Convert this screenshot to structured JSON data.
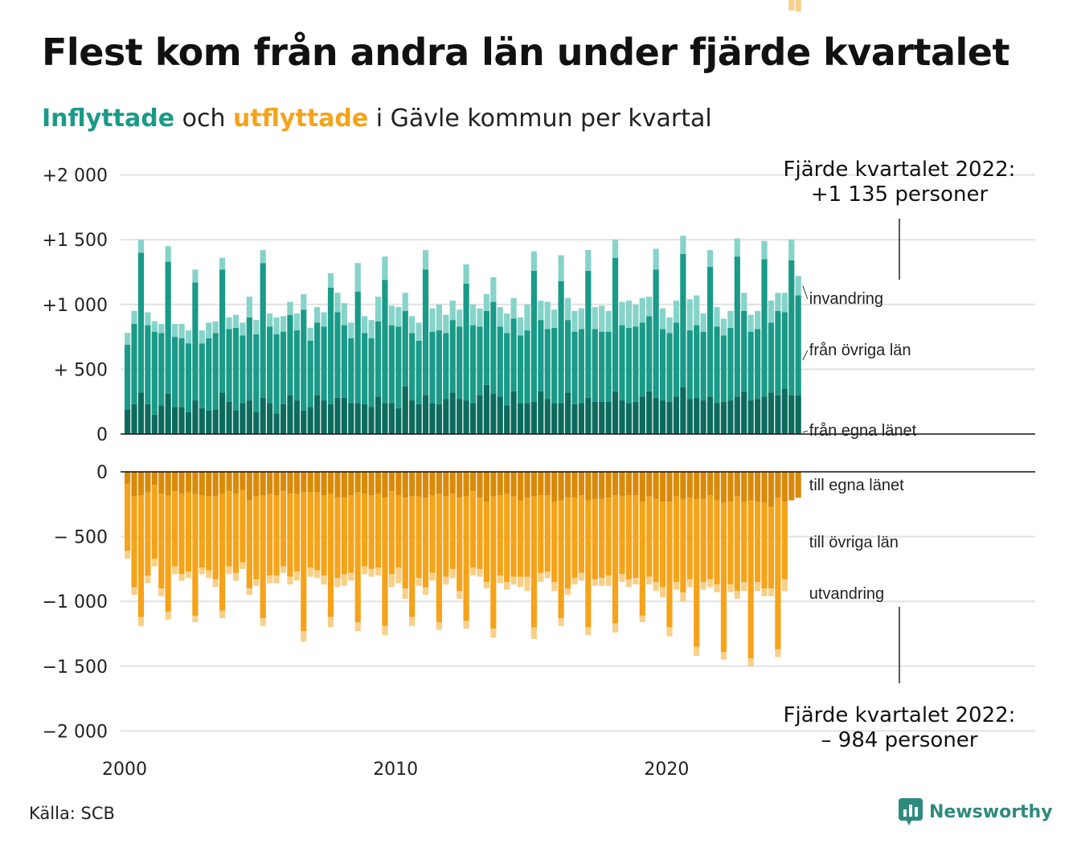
{
  "title": "Flest kom från andra län under fjärde kvartalet",
  "subtitle": {
    "part1": "Inflyttade",
    "part2": " och ",
    "part3": "utflyttade",
    "part4": " i Gävle kommun per kvartal"
  },
  "source": "Källa: SCB",
  "brand": "Newsworthy",
  "colors": {
    "in_egna": "#0d6b5e",
    "in_ovriga": "#1a9a88",
    "in_invandring": "#86d3c9",
    "out_egna": "#d98a0a",
    "out_ovriga": "#f5a31a",
    "out_utvandring": "#f8d08a",
    "brand": "#2e8a7d"
  },
  "chart_data": {
    "type": "bar",
    "stacked": true,
    "x_start": "2000 Q1",
    "x_ticks": [
      "2000",
      "2010",
      "2020"
    ],
    "y_ticks_top": [
      "+2 000",
      "+1 500",
      "+1 000",
      "+  500",
      "0"
    ],
    "y_ticks_bottom": [
      "0",
      "−  500",
      "−1 000",
      "−1 500",
      "−2 000"
    ],
    "ylim_top": [
      0,
      2000
    ],
    "ylim_bottom": [
      -2000,
      0
    ],
    "grid": true,
    "series_in": [
      {
        "name": "invandring",
        "values": [
          90,
          100,
          100,
          100,
          80,
          70,
          120,
          100,
          110,
          100,
          100,
          100,
          120,
          90,
          90,
          90,
          100,
          100,
          160,
          110,
          100,
          100,
          130,
          120,
          100,
          130,
          120,
          100,
          120,
          110,
          110,
          150,
          170,
          120,
          220,
          130,
          140,
          190,
          180,
          150,
          150,
          140,
          130,
          140,
          150,
          180,
          200,
          140,
          150,
          130,
          150,
          160,
          140,
          130,
          190,
          150,
          150,
          160,
          140,
          200,
          150,
          150,
          210,
          140,
          200,
          170,
          160,
          160,
          160,
          170,
          200,
          160,
          140,
          180,
          210,
          170,
          190,
          150,
          160,
          160,
          120,
          170,
          140,
          240,
          230,
          140,
          130,
          150,
          130,
          130,
          140,
          140,
          130,
          140,
          140,
          170,
          140,
          150,
          160,
          150
        ]
      },
      {
        "name": "från övriga län",
        "values": [
          500,
          620,
          1080,
          610,
          640,
          560,
          1020,
          540,
          530,
          530,
          910,
          500,
          560,
          590,
          950,
          560,
          640,
          520,
          640,
          600,
          1040,
          590,
          610,
          560,
          620,
          540,
          780,
          510,
          560,
          570,
          900,
          660,
          560,
          500,
          860,
          550,
          530,
          580,
          950,
          600,
          630,
          580,
          520,
          490,
          970,
          550,
          570,
          510,
          560,
          560,
          900,
          600,
          530,
          570,
          710,
          540,
          560,
          560,
          520,
          560,
          1010,
          550,
          540,
          580,
          940,
          560,
          560,
          570,
          980,
          560,
          540,
          540,
          1030,
          580,
          580,
          580,
          570,
          580,
          990,
          550,
          530,
          570,
          1030,
          530,
          560,
          530,
          1000,
          590,
          510,
          560,
          1080,
          620,
          530,
          540,
          1060,
          540,
          650,
          590,
          1040,
          770
        ]
      },
      {
        "name": "från egna länet",
        "values": [
          190,
          230,
          320,
          230,
          150,
          220,
          310,
          210,
          210,
          170,
          260,
          200,
          180,
          190,
          320,
          250,
          180,
          240,
          260,
          170,
          280,
          240,
          160,
          230,
          300,
          260,
          180,
          210,
          300,
          260,
          230,
          280,
          280,
          240,
          240,
          230,
          210,
          290,
          240,
          240,
          200,
          370,
          260,
          230,
          300,
          240,
          230,
          270,
          320,
          270,
          260,
          240,
          300,
          380,
          310,
          290,
          220,
          330,
          240,
          240,
          250,
          330,
          270,
          240,
          240,
          320,
          230,
          240,
          280,
          250,
          250,
          250,
          330,
          260,
          240,
          250,
          290,
          330,
          280,
          260,
          250,
          290,
          360,
          270,
          280,
          260,
          290,
          240,
          250,
          260,
          290,
          330,
          260,
          270,
          290,
          320,
          300,
          350,
          300,
          300
        ]
      }
    ],
    "series_out": [
      {
        "name": "till egna länet",
        "values": [
          90,
          190,
          180,
          160,
          100,
          170,
          180,
          150,
          170,
          160,
          170,
          180,
          190,
          190,
          170,
          150,
          170,
          140,
          220,
          190,
          180,
          170,
          180,
          150,
          170,
          170,
          160,
          160,
          160,
          180,
          170,
          200,
          200,
          180,
          160,
          170,
          180,
          170,
          200,
          150,
          180,
          200,
          190,
          190,
          200,
          180,
          170,
          190,
          170,
          200,
          190,
          150,
          200,
          230,
          190,
          180,
          170,
          190,
          220,
          200,
          190,
          180,
          180,
          230,
          220,
          200,
          200,
          180,
          220,
          210,
          210,
          200,
          180,
          190,
          180,
          180,
          230,
          190,
          210,
          230,
          230,
          190,
          210,
          200,
          210,
          210,
          180,
          220,
          240,
          230,
          190,
          230,
          220,
          230,
          240,
          270,
          200,
          230,
          220,
          200
        ]
      },
      {
        "name": "till övriga län",
        "values": [
          520,
          700,
          940,
          640,
          570,
          730,
          900,
          580,
          620,
          610,
          940,
          560,
          570,
          640,
          900,
          580,
          610,
          560,
          680,
          640,
          950,
          630,
          620,
          580,
          640,
          600,
          1070,
          580,
          600,
          620,
          950,
          620,
          590,
          600,
          1000,
          560,
          570,
          570,
          990,
          640,
          560,
          700,
          930,
          630,
          690,
          600,
          990,
          620,
          580,
          720,
          960,
          590,
          550,
          620,
          1020,
          620,
          680,
          620,
          590,
          610,
          1010,
          600,
          590,
          620,
          910,
          700,
          620,
          600,
          980,
          620,
          610,
          600,
          990,
          600,
          650,
          640,
          880,
          620,
          640,
          660,
          970,
          660,
          720,
          630,
          1140,
          640,
          650,
          650,
          1150,
          640,
          730,
          620,
          1220,
          620,
          660,
          630,
          1170,
          600
        ]
      },
      {
        "name": "utvandring",
        "values": [
          60,
          60,
          70,
          60,
          60,
          60,
          60,
          60,
          50,
          50,
          50,
          50,
          60,
          60,
          60,
          60,
          60,
          50,
          50,
          50,
          60,
          60,
          60,
          50,
          60,
          70,
          80,
          70,
          60,
          70,
          80,
          70,
          90,
          60,
          70,
          60,
          60,
          60,
          70,
          100,
          120,
          80,
          70,
          60,
          60,
          60,
          60,
          60,
          70,
          60,
          60,
          60,
          60,
          50,
          70,
          60,
          60,
          60,
          80,
          110,
          90,
          70,
          50,
          70,
          60,
          50,
          50,
          60,
          60,
          50,
          60,
          80,
          70,
          60,
          60,
          50,
          50,
          60,
          70,
          80,
          70,
          60,
          70,
          60,
          70,
          60,
          60,
          60,
          60,
          60,
          60,
          70,
          60,
          70,
          60,
          60,
          60,
          90,
          80,
          90
        ]
      }
    ],
    "annotation_top": [
      "Fjärde kvartalet 2022:",
      "+1 135 personer"
    ],
    "annotation_bottom": [
      "Fjärde kvartalet 2022:",
      "–  984 personer"
    ]
  }
}
